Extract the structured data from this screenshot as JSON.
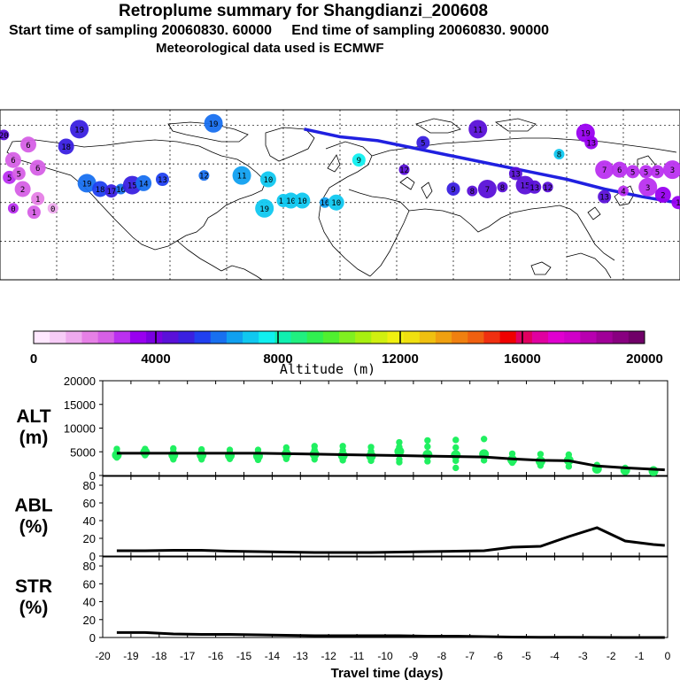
{
  "header": {
    "title": "Retroplume summary for Shangdianzi_200608",
    "sampling": "Start time of sampling 20060830. 60000     End time of sampling 20060830. 90000",
    "meteo": "Meteorological data used is ECMWF"
  },
  "colorbar": {
    "label": "Altitude (m)",
    "ticks": [
      "0",
      "4000",
      "8000",
      "12000",
      "16000",
      "20000"
    ],
    "colors": [
      "#ffe8ff",
      "#f7ccf7",
      "#eeaaee",
      "#e680e6",
      "#d660e6",
      "#bb30f0",
      "#9900f0",
      "#7a00e0",
      "#5a10d8",
      "#3a20e0",
      "#2040f0",
      "#1870f0",
      "#10a0f0",
      "#10c8f0",
      "#10f0f0",
      "#10f0b0",
      "#20f080",
      "#30f050",
      "#50f030",
      "#80f020",
      "#a8f010",
      "#d0f010",
      "#f0f010",
      "#f0e010",
      "#f0c010",
      "#f0a010",
      "#f08010",
      "#f06010",
      "#f03010",
      "#f00000",
      "#e00060",
      "#e000a0",
      "#e000d0",
      "#d000c8",
      "#b800b0",
      "#a00098",
      "#880080",
      "#700068"
    ]
  },
  "map": {
    "description_free": true,
    "track_color": "#2020e0",
    "markers": [
      {
        "lon": -178,
        "lat": 75,
        "t": "20",
        "c": "#5a10d8"
      },
      {
        "lon": -67,
        "lat": 81,
        "t": "19",
        "c": "#1870f0"
      },
      {
        "lon": -134,
        "lat": 50,
        "t": "19",
        "c": "#1870f0"
      },
      {
        "lon": -127,
        "lat": 47,
        "t": "18",
        "c": "#2040f0"
      },
      {
        "lon": -121,
        "lat": 46,
        "t": "17",
        "c": "#3a20e0"
      },
      {
        "lon": -116,
        "lat": 47,
        "t": "16",
        "c": "#1870f0"
      },
      {
        "lon": -110,
        "lat": 49,
        "t": "15",
        "c": "#3a20e0"
      },
      {
        "lon": -104,
        "lat": 50,
        "t": "14",
        "c": "#1870f0"
      },
      {
        "lon": -94,
        "lat": 52,
        "t": "13",
        "c": "#2040f0"
      },
      {
        "lon": -72,
        "lat": 54,
        "t": "12",
        "c": "#1870f0"
      },
      {
        "lon": -52,
        "lat": 54,
        "t": "11",
        "c": "#10a0f0"
      },
      {
        "lon": -38,
        "lat": 52,
        "t": "10",
        "c": "#10c8f0"
      },
      {
        "lon": -30,
        "lat": 41,
        "t": "13",
        "c": "#10c8f0"
      },
      {
        "lon": -26,
        "lat": 41,
        "t": "10",
        "c": "#10c8f0"
      },
      {
        "lon": -20,
        "lat": 41,
        "t": "10",
        "c": "#10c8f0"
      },
      {
        "lon": -40,
        "lat": 37,
        "t": "19",
        "c": "#10c8f0"
      },
      {
        "lon": -8,
        "lat": 40,
        "t": "16",
        "c": "#10a0f0"
      },
      {
        "lon": -2,
        "lat": 40,
        "t": "10",
        "c": "#10c8f0"
      },
      {
        "lon": 10,
        "lat": 62,
        "t": "9",
        "c": "#10f0f0"
      },
      {
        "lon": 34,
        "lat": 57,
        "t": "12",
        "c": "#5a10d8"
      },
      {
        "lon": 44,
        "lat": 71,
        "t": "5",
        "c": "#3a20e0"
      },
      {
        "lon": 73,
        "lat": 78,
        "t": "11",
        "c": "#5a10d8"
      },
      {
        "lon": 60,
        "lat": 47,
        "t": "9",
        "c": "#3a20e0"
      },
      {
        "lon": 70,
        "lat": 46,
        "t": "8",
        "c": "#5a10d8"
      },
      {
        "lon": 78,
        "lat": 47,
        "t": "7",
        "c": "#5a10d8"
      },
      {
        "lon": 86,
        "lat": 48,
        "t": "8",
        "c": "#5a10d8"
      },
      {
        "lon": 93,
        "lat": 55,
        "t": "13",
        "c": "#5a10d8"
      },
      {
        "lon": 98,
        "lat": 49,
        "t": "15",
        "c": "#5a10d8"
      },
      {
        "lon": 103,
        "lat": 48,
        "t": "13",
        "c": "#5a10d8"
      },
      {
        "lon": 110,
        "lat": 48,
        "t": "12",
        "c": "#5a10d8"
      },
      {
        "lon": 116,
        "lat": 65,
        "t": "8",
        "c": "#10c8f0"
      },
      {
        "lon": 130,
        "lat": 76,
        "t": "19",
        "c": "#9900f0"
      },
      {
        "lon": 133,
        "lat": 71,
        "t": "13",
        "c": "#9900f0"
      },
      {
        "lon": 140,
        "lat": 57,
        "t": "7",
        "c": "#bb30f0"
      },
      {
        "lon": 148,
        "lat": 57,
        "t": "6",
        "c": "#bb30f0"
      },
      {
        "lon": 155,
        "lat": 56,
        "t": "5",
        "c": "#bb30f0"
      },
      {
        "lon": 162,
        "lat": 56,
        "t": "5",
        "c": "#bb30f0"
      },
      {
        "lon": 168,
        "lat": 56,
        "t": "5",
        "c": "#bb30f0"
      },
      {
        "lon": 176,
        "lat": 57,
        "t": "3",
        "c": "#bb30f0"
      },
      {
        "lon": -175,
        "lat": 53,
        "t": "5",
        "c": "#bb30f0"
      },
      {
        "lon": -168,
        "lat": 47,
        "t": "2",
        "c": "#d660e6"
      },
      {
        "lon": -160,
        "lat": 42,
        "t": "1",
        "c": "#e680e6"
      },
      {
        "lon": -152,
        "lat": 37,
        "t": "0",
        "c": "#eeaaee"
      },
      {
        "lon": 150,
        "lat": 46,
        "t": "4",
        "c": "#bb30f0"
      },
      {
        "lon": 140,
        "lat": 43,
        "t": "13",
        "c": "#5a10d8"
      },
      {
        "lon": 163,
        "lat": 48,
        "t": "3",
        "c": "#bb30f0"
      },
      {
        "lon": 171,
        "lat": 44,
        "t": "2",
        "c": "#9900f0"
      },
      {
        "lon": 179,
        "lat": 40,
        "t": "1",
        "c": "#9900f0"
      },
      {
        "lon": -173,
        "lat": 37,
        "t": "0",
        "c": "#bb30f0"
      },
      {
        "lon": -162,
        "lat": 35,
        "t": "1",
        "c": "#d660e6"
      },
      {
        "lon": -145,
        "lat": 69,
        "t": "18",
        "c": "#3a20e0"
      },
      {
        "lon": -165,
        "lat": 70,
        "t": "6",
        "c": "#d660e6"
      },
      {
        "lon": -173,
        "lat": 62,
        "t": "6",
        "c": "#d660e6"
      },
      {
        "lon": -170,
        "lat": 55,
        "t": "5",
        "c": "#d660e6"
      },
      {
        "lon": -160,
        "lat": 58,
        "t": "6",
        "c": "#d660e6"
      },
      {
        "lon": -138,
        "lat": 78,
        "t": "19",
        "c": "#3a20e0"
      }
    ]
  },
  "chart_data": [
    {
      "type": "line",
      "panel": "ALT",
      "title": "ALT",
      "ylabel": "(m)",
      "yticks": [
        "20000",
        "15000",
        "10000",
        "5000",
        "0"
      ],
      "ylim": [
        0,
        20000
      ],
      "xlim": [
        -20,
        0
      ],
      "x": [
        -19.5,
        -18.5,
        -17.5,
        -16.5,
        -15.5,
        -14.5,
        -13.5,
        -12.5,
        -11.5,
        -10.5,
        -9.5,
        -8.5,
        -7.5,
        -6.5,
        -5.5,
        -4.5,
        -3.5,
        -2.5,
        -1.5,
        -0.5,
        -0.1
      ],
      "values": [
        4700,
        4700,
        4700,
        4700,
        4700,
        4700,
        4600,
        4500,
        4400,
        4300,
        4200,
        4100,
        4000,
        3900,
        3500,
        3200,
        3100,
        2000,
        1600,
        1300,
        1200
      ],
      "scatter": [
        {
          "x": -19.5,
          "y": [
            5600,
            4900,
            4300,
            3800
          ]
        },
        {
          "x": -18.5,
          "y": [
            5600,
            4900,
            4300
          ]
        },
        {
          "x": -17.5,
          "y": [
            5700,
            5000,
            4300,
            3400
          ]
        },
        {
          "x": -16.5,
          "y": [
            5500,
            4900,
            4300,
            3400
          ]
        },
        {
          "x": -15.5,
          "y": [
            5400,
            4800,
            4200,
            3500
          ]
        },
        {
          "x": -14.5,
          "y": [
            5400,
            4700,
            4100,
            3300
          ]
        },
        {
          "x": -13.5,
          "y": [
            5900,
            5200,
            4500,
            3500
          ]
        },
        {
          "x": -12.5,
          "y": [
            6200,
            5400,
            4500,
            3400
          ]
        },
        {
          "x": -11.5,
          "y": [
            6200,
            5300,
            4200,
            3200
          ]
        },
        {
          "x": -10.5,
          "y": [
            6000,
            5100,
            4100,
            3100
          ]
        },
        {
          "x": -9.5,
          "y": [
            7000,
            6000,
            5100,
            3400,
            2800
          ]
        },
        {
          "x": -8.5,
          "y": [
            7400,
            6100,
            4400,
            3000
          ]
        },
        {
          "x": -7.5,
          "y": [
            7500,
            5900,
            4300,
            3100,
            1600
          ]
        },
        {
          "x": -6.5,
          "y": [
            7700,
            4500,
            3200
          ]
        },
        {
          "x": -5.5,
          "y": [
            4600,
            3300,
            2700
          ]
        },
        {
          "x": -4.5,
          "y": [
            4500,
            3000,
            2100
          ]
        },
        {
          "x": -3.5,
          "y": [
            4400,
            3200,
            1900
          ]
        },
        {
          "x": -2.5,
          "y": [
            2200,
            1400
          ]
        },
        {
          "x": -1.5,
          "y": [
            1600,
            1100
          ]
        },
        {
          "x": -0.5,
          "y": [
            1300,
            900
          ]
        }
      ]
    },
    {
      "type": "line",
      "panel": "ABL",
      "title": "ABL",
      "ylabel": "(%)",
      "yticks": [
        "80",
        "60",
        "40",
        "20",
        "0"
      ],
      "ylim": [
        0,
        90
      ],
      "xlim": [
        -20,
        0
      ],
      "x": [
        -19.5,
        -18.5,
        -17.5,
        -16.5,
        -15.5,
        -14.5,
        -13.5,
        -12.5,
        -11.5,
        -10.5,
        -9.5,
        -8.5,
        -7.5,
        -6.5,
        -5.5,
        -4.5,
        -3.5,
        -2.5,
        -1.5,
        -0.5,
        -0.1
      ],
      "values": [
        6,
        6,
        6.5,
        6.5,
        5.5,
        5,
        4.5,
        4,
        4,
        4,
        4.5,
        5,
        5.5,
        6,
        10,
        11,
        22,
        32,
        17,
        13,
        12
      ]
    },
    {
      "type": "line",
      "panel": "STR",
      "title": "STR",
      "ylabel": "(%)",
      "yticks": [
        "80",
        "60",
        "40",
        "20",
        "0"
      ],
      "ylim": [
        0,
        90
      ],
      "xlim": [
        -20,
        0
      ],
      "x": [
        -19.5,
        -18.5,
        -17.5,
        -16.5,
        -15.5,
        -14.5,
        -13.5,
        -12.5,
        -11.5,
        -10.5,
        -9.5,
        -8.5,
        -7.5,
        -6.5,
        -5.5,
        -4.5,
        -3.5,
        -2.5,
        -1.5,
        -0.5,
        -0.1
      ],
      "values": [
        5.5,
        5.5,
        4,
        3.5,
        3.5,
        3,
        2.5,
        2,
        2,
        2,
        2,
        1.5,
        1.5,
        1,
        0.5,
        0.3,
        0.2,
        0.1,
        0,
        0,
        0
      ]
    }
  ],
  "xaxis": {
    "label": "Travel time (days)",
    "ticks": [
      "-20",
      "-19",
      "-18",
      "-17",
      "-16",
      "-15",
      "-14",
      "-13",
      "-12",
      "-11",
      "-10",
      "-9",
      "-8",
      "-7",
      "-6",
      "-5",
      "-4",
      "-3",
      "-2",
      "-1",
      "0"
    ]
  }
}
